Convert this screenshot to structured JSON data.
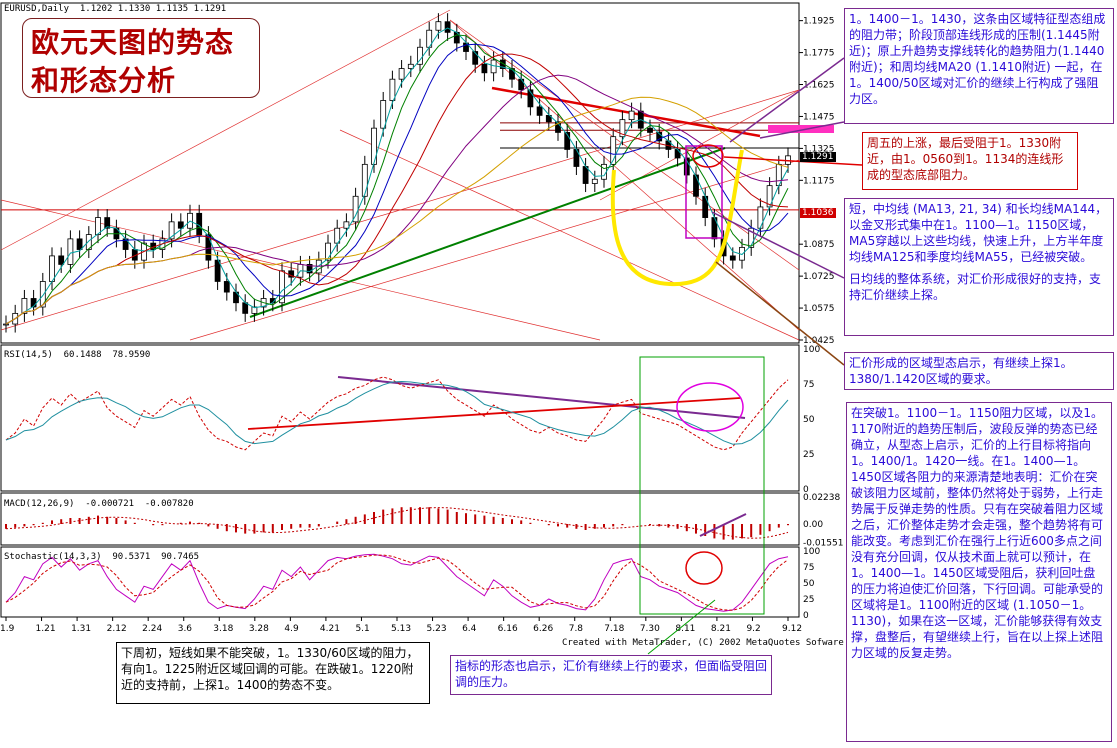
{
  "title_lines": [
    "欧元天图的势态",
    "和形态分析"
  ],
  "header": {
    "symbol_line": "EURUSD,Daily  1.1202 1.1330 1.1135 1.1291",
    "rsi": "RSI(14,5)  60.1488  78.9590",
    "macd": "MACD(12,26,9)  -0.000721  -0.007820",
    "stoch": "Stochastic(14,3,3)  90.5371  90.7465",
    "copyright": "Created with MetaTrader, (C) 2002 MetaQuotes Sofware Corp."
  },
  "price_tags": {
    "last": "1.1291",
    "red_line": "1.1036"
  },
  "notes": {
    "n1": "1。1400－1。1430，这条由区域特征型态组成的阻力带；阶段顶部连线形成的压制(1.1445附近)；原上升趋势支撑线转化的趋势阻力(1.1440附近)；和周均线MA20 (1.1410附近) 一起，在1。1400/50区域对汇价的继续上行构成了强阻力区。",
    "n2": "周五的上涨，最后受阻于1。1330附近，由1。0560到1。1134的连线形成的型态底部阻力。",
    "n3": "短，中均线 (MA13, 21, 34) 和长均线MA144，以金叉形式集中在1。1100—1。1150区域，MA5穿越以上这些均线，快速上升，上方半年度均线MA125和季度均线MA55，已经被突破。",
    "n3b": "日均线的整体系统，对汇价形成很好的支持，支持汇价继续上探。",
    "n4": "汇价形成的区域型态启示，有继续上探1。1380/1.1420区域的要求。",
    "n5": "在突破1。1100－1。1150阻力区域，以及1。1170附近的趋势压制后，波段反弹的势态已经确立，从型态上启示，汇价的上行目标将指向1。1400/1。1420一线。在1。1400—1。1450区域各阻力的来源清楚地表明：汇价在突破该阻力区域前，整体仍然将处于弱势，上行走势属于反弹走势的性质。只有在突破着阻力区域之后，汇价整体走势才会走强，整个趋势将有可能改变。考虑到汇价在强行上行近600多点之间没有充分回调，仅从技术面上就可以预计，在1。1400—1。1450区域受阻后，获利回吐盘的压力将迫使汇价回落，下行回调。可能承受的区域将是1。1100附近的区域 (1.1050－1。1130)，如果在这一区域，汇价能够获得有效支撑，盘整后，有望继续上行，旨在以上探上述阻力区域的反复走势。",
    "n6": "下周初，短线如果不能突破，1。1330/60区域的阻力，有向1。1225附近区域回调的可能。在跌破1。1220附近的支持前，上探1。1400的势态不变。",
    "n7": "指标的形态也启示，汇价有继续上行的要求，但面临受阻回调的压力。"
  },
  "chart_data": {
    "type": "line",
    "title": "EURUSD,Daily",
    "price_axis": {
      "ticks": [
        1.1925,
        1.1775,
        1.1625,
        1.1475,
        1.1325,
        1.1175,
        1.0875,
        1.0725,
        1.0575,
        1.0425
      ],
      "ylim": [
        1.0425,
        1.1975
      ]
    },
    "date_axis_labels": [
      "1.9",
      "1.21",
      "1.31",
      "2.12",
      "2.24",
      "3.6",
      "3.18",
      "3.28",
      "4.9",
      "4.21",
      "5.1",
      "5.13",
      "5.23",
      "6.4",
      "6.16",
      "6.26",
      "7.8",
      "7.18",
      "7.30",
      "8.11",
      "8.21",
      "9.2",
      "9.12"
    ],
    "close": [
      1.05,
      1.055,
      1.062,
      1.058,
      1.07,
      1.082,
      1.078,
      1.09,
      1.085,
      1.092,
      1.1,
      1.095,
      1.09,
      1.085,
      1.08,
      1.088,
      1.085,
      1.09,
      1.098,
      1.095,
      1.102,
      1.092,
      1.08,
      1.07,
      1.065,
      1.06,
      1.055,
      1.058,
      1.062,
      1.06,
      1.075,
      1.072,
      1.078,
      1.074,
      1.08,
      1.088,
      1.095,
      1.098,
      1.11,
      1.125,
      1.142,
      1.155,
      1.165,
      1.17,
      1.172,
      1.18,
      1.188,
      1.192,
      1.187,
      1.182,
      1.178,
      1.172,
      1.168,
      1.174,
      1.17,
      1.165,
      1.16,
      1.152,
      1.148,
      1.145,
      1.14,
      1.132,
      1.124,
      1.116,
      1.118,
      1.125,
      1.138,
      1.146,
      1.15,
      1.142,
      1.14,
      1.136,
      1.132,
      1.128,
      1.12,
      1.11,
      1.1,
      1.09,
      1.082,
      1.08,
      1.086,
      1.095,
      1.105,
      1.115,
      1.125,
      1.129
    ],
    "rsi": {
      "ylim": [
        0,
        100
      ],
      "ticks": [
        100,
        75,
        50,
        25,
        0
      ],
      "values": [
        35,
        40,
        50,
        45,
        58,
        65,
        60,
        68,
        62,
        66,
        70,
        58,
        52,
        48,
        44,
        56,
        52,
        58,
        64,
        60,
        66,
        52,
        42,
        36,
        34,
        30,
        28,
        34,
        40,
        38,
        52,
        48,
        55,
        50,
        56,
        62,
        66,
        68,
        72,
        74,
        78,
        80,
        78,
        74,
        72,
        74,
        76,
        78,
        70,
        64,
        60,
        56,
        52,
        60,
        56,
        50,
        46,
        42,
        40,
        44,
        40,
        38,
        35,
        34,
        42,
        50,
        60,
        62,
        64,
        54,
        52,
        50,
        48,
        46,
        42,
        38,
        34,
        30,
        28,
        30,
        40,
        48,
        56,
        64,
        72,
        78
      ]
    },
    "macd": {
      "ticks": [
        0.02238,
        0.0,
        -0.01551
      ],
      "values": [
        -0.004,
        -0.003,
        -0.002,
        -0.001,
        0.001,
        0.003,
        0.004,
        0.005,
        0.005,
        0.006,
        0.007,
        0.006,
        0.005,
        0.003,
        0.001,
        0.0,
        -0.001,
        -0.001,
        0.0,
        0.001,
        0.002,
        0.001,
        -0.002,
        -0.004,
        -0.006,
        -0.007,
        -0.008,
        -0.008,
        -0.007,
        -0.007,
        -0.005,
        -0.004,
        -0.003,
        -0.003,
        -0.002,
        0.0,
        0.002,
        0.004,
        0.006,
        0.008,
        0.01,
        0.012,
        0.013,
        0.014,
        0.014,
        0.014,
        0.014,
        0.013,
        0.012,
        0.01,
        0.009,
        0.008,
        0.007,
        0.006,
        0.005,
        0.004,
        0.003,
        0.001,
        0.0,
        -0.001,
        -0.002,
        -0.003,
        -0.004,
        -0.005,
        -0.004,
        -0.003,
        -0.002,
        -0.001,
        0.0,
        0.0,
        -0.001,
        -0.002,
        -0.003,
        -0.004,
        -0.006,
        -0.008,
        -0.01,
        -0.012,
        -0.013,
        -0.013,
        -0.012,
        -0.011,
        -0.009,
        -0.006,
        -0.003,
        -0.001
      ]
    },
    "stochastic": {
      "ylim": [
        0,
        100
      ],
      "ticks": [
        100,
        75,
        50,
        25,
        0
      ],
      "values": [
        20,
        35,
        60,
        55,
        80,
        90,
        75,
        88,
        70,
        80,
        85,
        60,
        40,
        30,
        20,
        45,
        40,
        60,
        80,
        70,
        85,
        50,
        20,
        10,
        15,
        12,
        10,
        25,
        45,
        40,
        70,
        60,
        75,
        55,
        70,
        85,
        90,
        88,
        92,
        94,
        95,
        92,
        88,
        80,
        78,
        85,
        92,
        90,
        75,
        60,
        50,
        40,
        30,
        55,
        45,
        30,
        20,
        12,
        15,
        25,
        18,
        15,
        10,
        8,
        25,
        55,
        80,
        85,
        88,
        60,
        55,
        45,
        40,
        35,
        25,
        15,
        10,
        8,
        6,
        8,
        20,
        40,
        60,
        80,
        88,
        91
      ]
    }
  }
}
